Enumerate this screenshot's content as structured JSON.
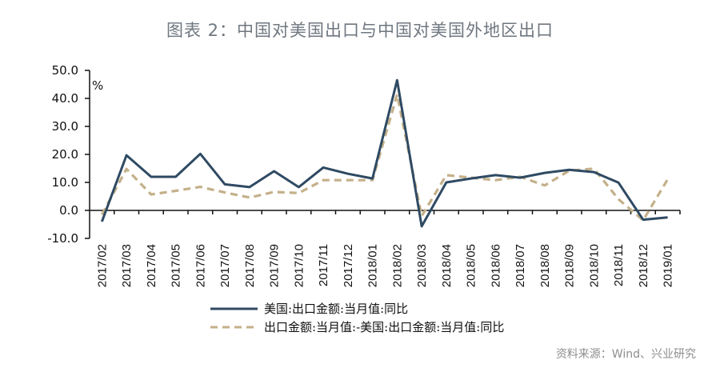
{
  "title": "图表 2：中国对美国出口与中国对美国外地区出口",
  "source": "资料来源：Wind、兴业研究",
  "colors": {
    "series_us": "#2f4a63",
    "series_ex_us": "#c4b08a",
    "axis": "#111111"
  },
  "chart_data": {
    "type": "line",
    "title": "图表 2：中国对美国出口与中国对美国外地区出口",
    "xlabel": "",
    "ylabel": "%",
    "ylim": [
      -10,
      50
    ],
    "yticks": [
      50,
      40,
      30,
      20,
      10,
      0,
      -10
    ],
    "ytick_labels": [
      "50.0",
      "40.0",
      "30.0",
      "20.0",
      "10.0",
      "0.0",
      "-10.0"
    ],
    "grid": false,
    "legend_position": "bottom",
    "categories": [
      "2017/02",
      "2017/03",
      "2017/04",
      "2017/05",
      "2017/06",
      "2017/07",
      "2017/08",
      "2017/09",
      "2017/10",
      "2017/11",
      "2017/12",
      "2018/01",
      "2018/02",
      "2018/03",
      "2018/04",
      "2018/05",
      "2018/06",
      "2018/07",
      "2018/08",
      "2018/09",
      "2018/10",
      "2018/11",
      "2018/12",
      "2019/01"
    ],
    "series": [
      {
        "name": "美国:出口金额:当月值:同比",
        "style": "solid",
        "color": "#2f4a63",
        "values": [
          -4.0,
          19.7,
          12.0,
          12.0,
          20.2,
          9.3,
          8.3,
          14.0,
          8.3,
          15.3,
          13.1,
          11.4,
          46.5,
          -5.7,
          10.0,
          11.4,
          12.6,
          11.7,
          13.4,
          14.5,
          13.7,
          9.9,
          -3.3,
          -2.5
        ]
      },
      {
        "name": "出口金额:当月值:-美国:出口金额:当月值:同比",
        "style": "dashed",
        "color": "#c4b08a",
        "values": [
          -1.5,
          14.8,
          5.7,
          7.0,
          8.4,
          6.4,
          4.6,
          6.6,
          6.2,
          10.8,
          10.8,
          10.8,
          41.4,
          -2.0,
          12.6,
          11.7,
          10.8,
          12.0,
          8.9,
          14.2,
          14.9,
          4.0,
          -3.5,
          11.1
        ]
      }
    ]
  }
}
